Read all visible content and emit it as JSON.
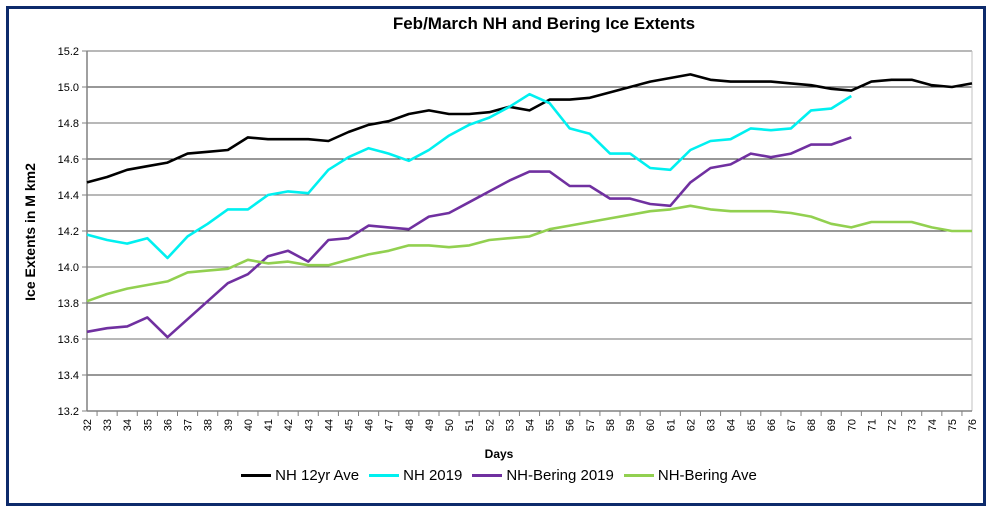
{
  "chart_data": {
    "type": "line",
    "title": "Feb/March NH and Bering Ice Extents",
    "xlabel": "Days",
    "ylabel": "Ice Extents in M km2",
    "ylim": [
      13.2,
      15.2
    ],
    "ytick_step": 0.2,
    "yticks": [
      "13.2",
      "13.4",
      "13.6",
      "13.8",
      "14.0",
      "14.2",
      "14.4",
      "14.6",
      "14.8",
      "15.0",
      "15.2"
    ],
    "grid": true,
    "legend_position": "bottom",
    "x": [
      32,
      33,
      34,
      35,
      36,
      37,
      38,
      39,
      40,
      41,
      42,
      43,
      44,
      45,
      46,
      47,
      48,
      49,
      50,
      51,
      52,
      53,
      54,
      55,
      56,
      57,
      58,
      59,
      60,
      61,
      62,
      63,
      64,
      65,
      66,
      67,
      68,
      69,
      70,
      71,
      72,
      73,
      74,
      75,
      76
    ],
    "series": [
      {
        "name": "NH 12yr Ave",
        "color": "#000000",
        "values": [
          14.47,
          14.5,
          14.54,
          14.56,
          14.58,
          14.63,
          14.64,
          14.65,
          14.72,
          14.71,
          14.71,
          14.71,
          14.7,
          14.75,
          14.79,
          14.81,
          14.85,
          14.87,
          14.85,
          14.85,
          14.86,
          14.89,
          14.87,
          14.93,
          14.93,
          14.94,
          14.97,
          15.0,
          15.03,
          15.05,
          15.07,
          15.04,
          15.03,
          15.03,
          15.03,
          15.02,
          15.01,
          14.99,
          14.98,
          15.03,
          15.04,
          15.04,
          15.01,
          15.0,
          15.02
        ]
      },
      {
        "name": "NH 2019",
        "color": "#00f0f0",
        "values": [
          14.18,
          14.15,
          14.13,
          14.16,
          14.05,
          14.17,
          14.24,
          14.32,
          14.32,
          14.4,
          14.42,
          14.41,
          14.54,
          14.61,
          14.66,
          14.63,
          14.59,
          14.65,
          14.73,
          14.79,
          14.83,
          14.89,
          14.96,
          14.91,
          14.77,
          14.74,
          14.63,
          14.63,
          14.55,
          14.54,
          14.65,
          14.7,
          14.71,
          14.77,
          14.76,
          14.77,
          14.87,
          14.88,
          14.95
        ]
      },
      {
        "name": "NH-Bering 2019",
        "color": "#7030a0",
        "values": [
          13.64,
          13.66,
          13.67,
          13.72,
          13.61,
          13.71,
          13.81,
          13.91,
          13.96,
          14.06,
          14.09,
          14.03,
          14.15,
          14.16,
          14.23,
          14.22,
          14.21,
          14.28,
          14.3,
          14.36,
          14.42,
          14.48,
          14.53,
          14.53,
          14.45,
          14.45,
          14.38,
          14.38,
          14.35,
          14.34,
          14.47,
          14.55,
          14.57,
          14.63,
          14.61,
          14.63,
          14.68,
          14.68,
          14.72
        ]
      },
      {
        "name": "NH-Bering Ave",
        "color": "#92d050",
        "values": [
          13.81,
          13.85,
          13.88,
          13.9,
          13.92,
          13.97,
          13.98,
          13.99,
          14.04,
          14.02,
          14.03,
          14.01,
          14.01,
          14.04,
          14.07,
          14.09,
          14.12,
          14.12,
          14.11,
          14.12,
          14.15,
          14.16,
          14.17,
          14.21,
          14.23,
          14.25,
          14.27,
          14.29,
          14.31,
          14.32,
          14.34,
          14.32,
          14.31,
          14.31,
          14.31,
          14.3,
          14.28,
          14.24,
          14.22,
          14.25,
          14.25,
          14.25,
          14.22,
          14.2,
          14.2
        ]
      }
    ]
  }
}
